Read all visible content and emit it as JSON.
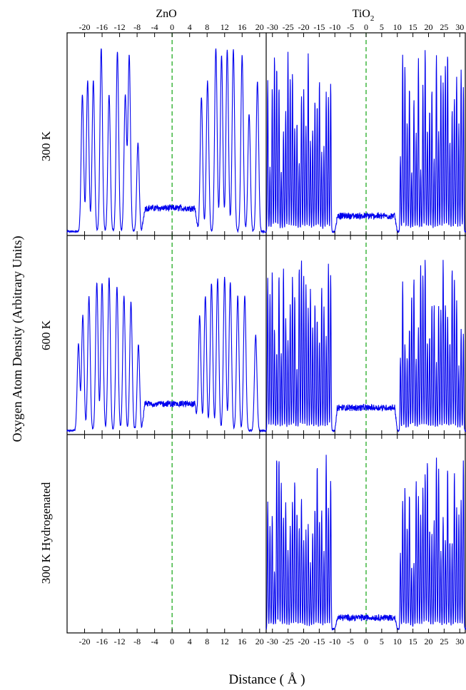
{
  "figure": {
    "ylabel": "Oxygen Atom Density (Arbitrary Units)",
    "xlabel": "Distance ( Å )",
    "column_titles": [
      {
        "text": "ZnO",
        "sub": ""
      },
      {
        "text": "TiO",
        "sub": "2"
      }
    ],
    "row_labels": [
      "300 K",
      "600 K",
      "300 K Hydrogenated"
    ],
    "colors": {
      "series": "#0000ee",
      "reference": "#22aa22",
      "frame": "#000000"
    }
  },
  "chart_data": [
    {
      "type": "line",
      "material": "ZnO",
      "panel": "300 K",
      "xlim": [
        -24,
        21.5
      ],
      "ticks": [
        -20,
        -16,
        -12,
        -8,
        -4,
        0,
        4,
        8,
        12,
        16,
        20
      ],
      "reference_x": 0,
      "dashed_reference": true,
      "peaks": [
        {
          "x": -20.5,
          "y": 0.7
        },
        {
          "x": -19.3,
          "y": 0.77
        },
        {
          "x": -18.0,
          "y": 0.77
        },
        {
          "x": -16.2,
          "y": 0.94
        },
        {
          "x": -14.4,
          "y": 0.7
        },
        {
          "x": -12.5,
          "y": 0.92
        },
        {
          "x": -10.7,
          "y": 0.7
        },
        {
          "x": -9.8,
          "y": 0.9
        },
        {
          "x": -7.8,
          "y": 0.45
        },
        {
          "x": 6.7,
          "y": 0.69
        },
        {
          "x": 8.1,
          "y": 0.77
        },
        {
          "x": 10.0,
          "y": 0.94
        },
        {
          "x": 11.3,
          "y": 0.9
        },
        {
          "x": 12.6,
          "y": 0.93
        },
        {
          "x": 14.0,
          "y": 0.93
        },
        {
          "x": 16.0,
          "y": 0.9
        },
        {
          "x": 17.6,
          "y": 0.6
        },
        {
          "x": 19.5,
          "y": 0.77
        }
      ],
      "interface_range": [
        -7,
        6
      ],
      "interface_level": 0.12
    },
    {
      "type": "line",
      "material": "TiO2",
      "panel": "300 K",
      "xlim": [
        -32,
        32
      ],
      "ticks": [
        -30,
        -25,
        -20,
        -15,
        -10,
        -5,
        0,
        5,
        10,
        15,
        20,
        25,
        30
      ],
      "reference_x": 0,
      "dashed_reference": true,
      "peaks_left_range": [
        -31.5,
        -11
      ],
      "peaks_right_range": [
        11,
        31.5
      ],
      "peak_max": [
        0.95,
        0.95
      ],
      "peak_min": [
        0.3,
        0.3
      ],
      "interface_range": [
        -10,
        10
      ],
      "interface_level": 0.08
    },
    {
      "type": "line",
      "material": "ZnO",
      "panel": "600 K",
      "xlim": [
        -24,
        21.5
      ],
      "ticks": [
        -20,
        -16,
        -12,
        -8,
        -4,
        0,
        4,
        8,
        12,
        16,
        20
      ],
      "reference_x": 0,
      "dashed_reference": true,
      "peaks": [
        {
          "x": -21.4,
          "y": 0.45
        },
        {
          "x": -20.4,
          "y": 0.6
        },
        {
          "x": -19.0,
          "y": 0.7
        },
        {
          "x": -17.2,
          "y": 0.77
        },
        {
          "x": -16.0,
          "y": 0.77
        },
        {
          "x": -14.4,
          "y": 0.8
        },
        {
          "x": -12.6,
          "y": 0.75
        },
        {
          "x": -11.0,
          "y": 0.7
        },
        {
          "x": -9.4,
          "y": 0.67
        },
        {
          "x": -7.7,
          "y": 0.45
        },
        {
          "x": 6.3,
          "y": 0.6
        },
        {
          "x": 7.6,
          "y": 0.7
        },
        {
          "x": 9.0,
          "y": 0.77
        },
        {
          "x": 10.4,
          "y": 0.79
        },
        {
          "x": 12.0,
          "y": 0.8
        },
        {
          "x": 13.3,
          "y": 0.77
        },
        {
          "x": 15.0,
          "y": 0.7
        },
        {
          "x": 16.6,
          "y": 0.7
        },
        {
          "x": 19.1,
          "y": 0.5
        }
      ],
      "interface_range": [
        -7,
        6
      ],
      "interface_level": 0.14
    },
    {
      "type": "line",
      "material": "TiO2",
      "panel": "600 K",
      "xlim": [
        -32,
        32
      ],
      "ticks": [
        -30,
        -25,
        -20,
        -15,
        -10,
        -5,
        0,
        5,
        10,
        15,
        20,
        25,
        30
      ],
      "reference_x": 0,
      "dashed_reference": true,
      "peaks_left_range": [
        -31.5,
        -11
      ],
      "peaks_right_range": [
        11,
        31.5
      ],
      "peak_max": [
        0.9,
        0.9
      ],
      "peak_min": [
        0.3,
        0.3
      ],
      "interface_range": [
        -10,
        10
      ],
      "interface_level": 0.12
    },
    {
      "type": "line",
      "material": "ZnO",
      "panel": "300 K Hydrogenated",
      "xlim": [
        -24,
        21.5
      ],
      "ticks": [
        -20,
        -16,
        -12,
        -8,
        -4,
        0,
        4,
        8,
        12,
        16,
        20
      ],
      "reference_x": 0,
      "dashed_reference": true,
      "empty": true
    },
    {
      "type": "line",
      "material": "TiO2",
      "panel": "300 K Hydrogenated",
      "xlim": [
        -32,
        32
      ],
      "ticks": [
        -30,
        -25,
        -20,
        -15,
        -10,
        -5,
        0,
        5,
        10,
        15,
        20,
        25,
        30
      ],
      "reference_x": 0,
      "dashed_reference": true,
      "peaks_left_range": [
        -31.5,
        -11
      ],
      "peaks_right_range": [
        11,
        31.5
      ],
      "peak_max": [
        0.92,
        0.92
      ],
      "peak_min": [
        0.3,
        0.3
      ],
      "interface_range": [
        -10,
        10
      ],
      "interface_level": 0.06
    }
  ]
}
